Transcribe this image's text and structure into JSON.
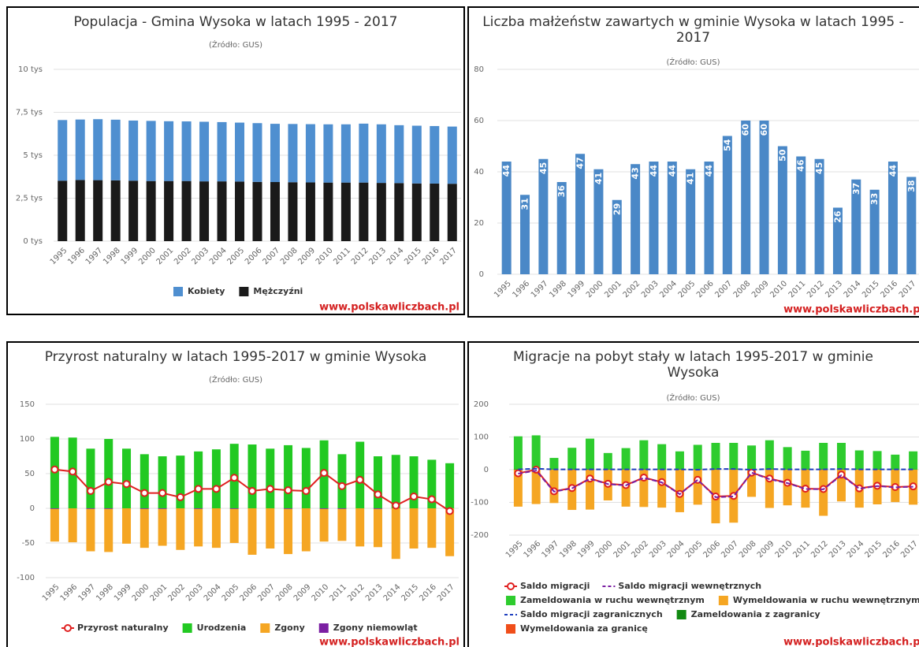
{
  "chart_data": [
    {
      "type": "stacked_bar",
      "title": "Populacja - Gmina Wysoka w latach 1995 - 2017",
      "subtitle": "(Źródło: GUS)",
      "categories": [
        "1995",
        "1996",
        "1997",
        "1998",
        "1999",
        "2000",
        "2001",
        "2002",
        "2003",
        "2004",
        "2005",
        "2006",
        "2007",
        "2008",
        "2009",
        "2010",
        "2011",
        "2012",
        "2013",
        "2014",
        "2015",
        "2016",
        "2017"
      ],
      "series": [
        {
          "name": "Kobiety",
          "color": "#4f8fd0",
          "values": [
            3.53,
            3.52,
            3.55,
            3.53,
            3.5,
            3.5,
            3.48,
            3.47,
            3.47,
            3.45,
            3.43,
            3.42,
            3.39,
            3.39,
            3.39,
            3.39,
            3.39,
            3.43,
            3.41,
            3.37,
            3.36,
            3.35,
            3.33
          ]
        },
        {
          "name": "Mężczyźni",
          "color": "#1a1a1a",
          "values": [
            3.52,
            3.56,
            3.55,
            3.54,
            3.52,
            3.5,
            3.5,
            3.5,
            3.48,
            3.48,
            3.47,
            3.45,
            3.44,
            3.43,
            3.42,
            3.41,
            3.41,
            3.41,
            3.39,
            3.38,
            3.36,
            3.35,
            3.34
          ]
        }
      ],
      "ylim": [
        0,
        10
      ],
      "yticks": [
        {
          "value": 0,
          "label": "0 tys"
        },
        {
          "value": 2.5,
          "label": "2,5 tys"
        },
        {
          "value": 5,
          "label": "5 tys"
        },
        {
          "value": 7.5,
          "label": "7,5 tys"
        },
        {
          "value": 10,
          "label": "10 tys"
        }
      ],
      "grid": true,
      "watermark": "www.polskawliczbach.pl"
    },
    {
      "type": "bar",
      "title": "Liczba małżeństw zawartych w gminie Wysoka w latach 1995 - 2017",
      "subtitle": "(Źródło: GUS)",
      "categories": [
        "1995",
        "1996",
        "1997",
        "1998",
        "1999",
        "2000",
        "2001",
        "2002",
        "2003",
        "2004",
        "2005",
        "2006",
        "2007",
        "2008",
        "2009",
        "2010",
        "2011",
        "2012",
        "2013",
        "2014",
        "2015",
        "2016",
        "2017"
      ],
      "values": [
        44,
        31,
        45,
        36,
        47,
        41,
        29,
        43,
        44,
        44,
        41,
        44,
        54,
        60,
        60,
        50,
        46,
        45,
        26,
        37,
        33,
        44,
        38
      ],
      "color": "#4a88c7",
      "data_labels": true,
      "ylim": [
        0,
        80
      ],
      "yticks": [
        0,
        20,
        40,
        60,
        80
      ],
      "grid": true,
      "watermark": "www.polskawliczbach.pl"
    },
    {
      "type": "combo",
      "title": "Przyrost naturalny w latach 1995-2017 w gminie Wysoka",
      "subtitle": "(Źródło: GUS)",
      "categories": [
        "1995",
        "1996",
        "1997",
        "1998",
        "1999",
        "2000",
        "2001",
        "2002",
        "2003",
        "2004",
        "2005",
        "2006",
        "2007",
        "2008",
        "2009",
        "2010",
        "2011",
        "2012",
        "2013",
        "2014",
        "2015",
        "2016",
        "2017"
      ],
      "series": [
        {
          "name": "Przyrost naturalny",
          "kind": "line",
          "marker": true,
          "color": "#e02020",
          "values": [
            56,
            53,
            25,
            38,
            35,
            22,
            22,
            16,
            28,
            28,
            44,
            25,
            28,
            26,
            25,
            51,
            32,
            41,
            20,
            4,
            17,
            13,
            -4
          ]
        },
        {
          "name": "Urodzenia",
          "kind": "bar",
          "color": "#22c922",
          "values": [
            103,
            102,
            86,
            100,
            86,
            78,
            75,
            76,
            82,
            85,
            93,
            92,
            86,
            91,
            87,
            98,
            78,
            96,
            75,
            77,
            75,
            70,
            65
          ]
        },
        {
          "name": "Zgony",
          "kind": "bar",
          "color": "#f5a623",
          "values": [
            -47,
            -49,
            -61,
            -62,
            -51,
            -56,
            -53,
            -60,
            -54,
            -57,
            -49,
            -67,
            -58,
            -65,
            -62,
            -47,
            -46,
            -55,
            -55,
            -73,
            -58,
            -57,
            -69
          ]
        },
        {
          "name": "Zgony niemowląt",
          "kind": "bar",
          "color": "#7b1fa2",
          "values": [
            -1,
            0,
            -1,
            -1,
            0,
            -1,
            -1,
            0,
            -1,
            0,
            -1,
            0,
            0,
            -1,
            0,
            -1,
            -1,
            0,
            -1,
            0,
            0,
            0,
            0
          ]
        }
      ],
      "ylim": [
        -100,
        150
      ],
      "yticks": [
        -100,
        -50,
        0,
        50,
        100,
        150
      ],
      "grid": true,
      "watermark": "www.polskawliczbach.pl"
    },
    {
      "type": "combo",
      "title": "Migracje na pobyt stały w latach 1995-2017 w gminie Wysoka",
      "subtitle": "(Źródło: GUS)",
      "categories": [
        "1995",
        "1996",
        "1997",
        "1998",
        "1999",
        "2000",
        "2001",
        "2002",
        "2003",
        "2004",
        "2005",
        "2006",
        "2007",
        "2008",
        "2009",
        "2010",
        "2011",
        "2012",
        "2013",
        "2014",
        "2015",
        "2016",
        "2017"
      ],
      "series": [
        {
          "name": "Saldo migracji",
          "kind": "line",
          "marker": true,
          "color": "#e02020",
          "values": [
            -11,
            0,
            -66,
            -56,
            -27,
            -43,
            -47,
            -24,
            -38,
            -74,
            -31,
            -82,
            -80,
            -9,
            -27,
            -40,
            -58,
            -59,
            -15,
            -57,
            -49,
            -53,
            -51
          ]
        },
        {
          "name": "Saldo migracji wewnętrznych",
          "kind": "line",
          "dashed": true,
          "color": "#7b1fa2",
          "values": [
            -12,
            -3,
            -67,
            -57,
            -28,
            -44,
            -48,
            -25,
            -39,
            -75,
            -31,
            -84,
            -82,
            -9,
            -29,
            -41,
            -59,
            -60,
            -17,
            -58,
            -50,
            -54,
            -52
          ]
        },
        {
          "name": "Zameldowania w ruchu wewnętrznym",
          "kind": "bar",
          "color": "#2ecc2e",
          "values": [
            100,
            102,
            35,
            65,
            93,
            50,
            65,
            88,
            77,
            55,
            75,
            80,
            80,
            73,
            88,
            68,
            57,
            80,
            80,
            58,
            56,
            45,
            55
          ]
        },
        {
          "name": "Wymeldowania w ruchu wewnętrznym",
          "kind": "bar",
          "color": "#f5a623",
          "values": [
            -112,
            -105,
            -102,
            -122,
            -121,
            -94,
            -113,
            -113,
            -116,
            -130,
            -106,
            -164,
            -162,
            -82,
            -117,
            -109,
            -116,
            -140,
            -97,
            -116,
            -106,
            -99,
            -107
          ]
        },
        {
          "name": "Saldo migracji zagranicznych",
          "kind": "line",
          "dashed": true,
          "color": "#1f3fbf",
          "values": [
            1,
            3,
            1,
            1,
            1,
            1,
            1,
            1,
            1,
            1,
            0,
            2,
            2,
            0,
            2,
            1,
            1,
            1,
            2,
            1,
            1,
            1,
            1
          ]
        },
        {
          "name": "Zameldowania z zagranicy",
          "kind": "bar",
          "color": "#128a12",
          "values": [
            2,
            3,
            1,
            2,
            2,
            1,
            1,
            2,
            1,
            1,
            1,
            2,
            2,
            1,
            2,
            1,
            1,
            2,
            2,
            1,
            1,
            1,
            1
          ]
        },
        {
          "name": "Wymeldowania za granicę",
          "kind": "bar",
          "color": "#f04e1a",
          "values": [
            -1,
            0,
            0,
            -1,
            -1,
            0,
            0,
            -1,
            0,
            0,
            -1,
            0,
            0,
            -1,
            0,
            0,
            0,
            -1,
            0,
            0,
            0,
            0,
            0
          ]
        }
      ],
      "ylim": [
        -200,
        200
      ],
      "yticks": [
        -200,
        -100,
        0,
        100,
        200
      ],
      "grid": true,
      "watermark": "www.polskawliczbach.pl"
    }
  ]
}
